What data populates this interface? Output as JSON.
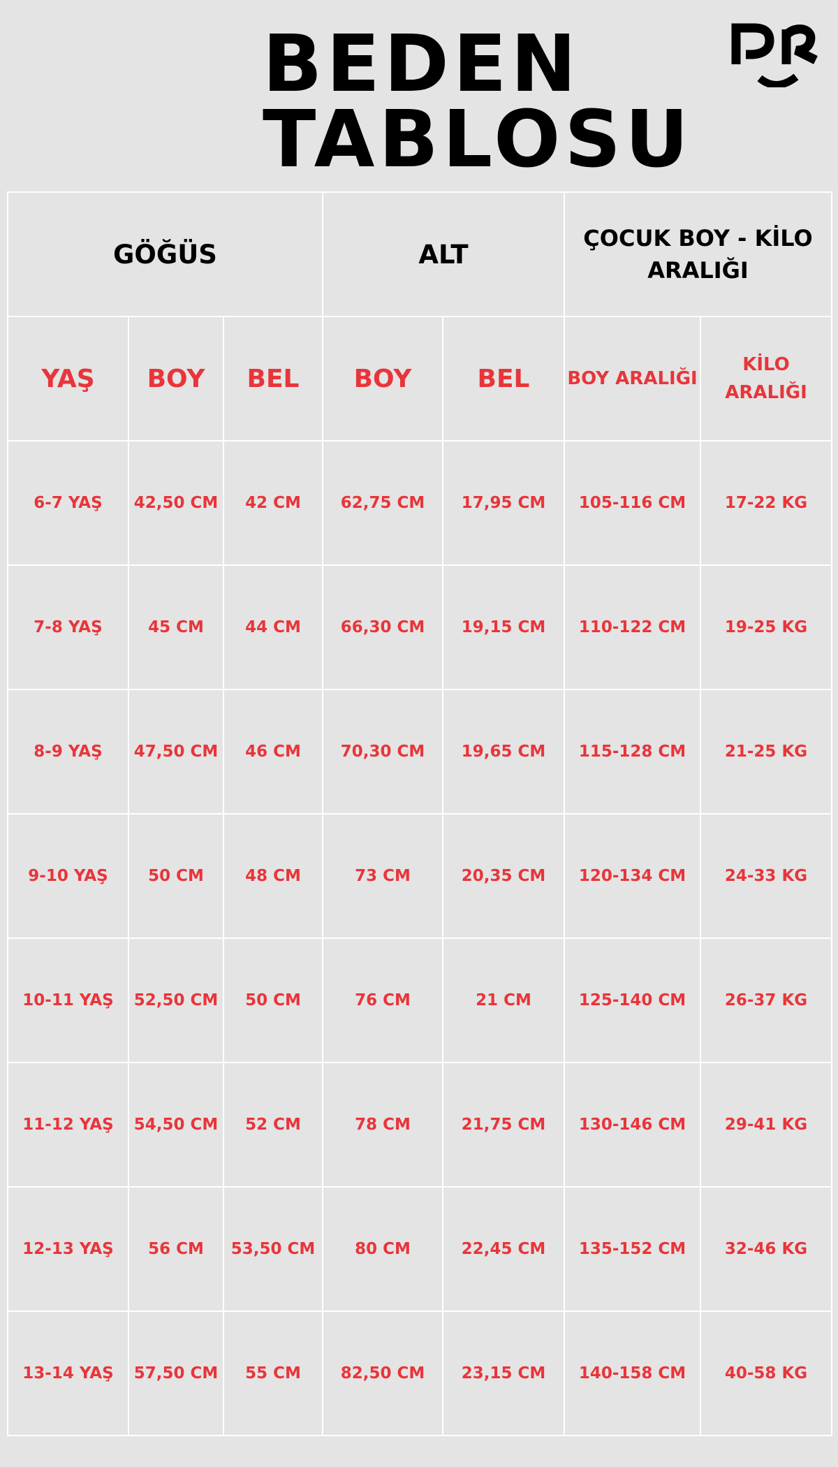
{
  "title": {
    "line1": "BEDEN",
    "line2": "TABLOSU"
  },
  "logo": {
    "text": "PR",
    "icon": "pr-smile-logo"
  },
  "colors": {
    "background": "#e4e4e4",
    "accent": "#e8353a",
    "grid": "#ffffff",
    "text": "#000000"
  },
  "groups": [
    "GÖĞÜS",
    "ALT",
    "ÇOCUK BOY - KİLO ARALIĞI"
  ],
  "columns": [
    "YAŞ",
    "BOY",
    "BEL",
    "BOY",
    "BEL",
    "BOY ARALIĞI",
    "KİLO ARALIĞI"
  ],
  "rows": [
    [
      "6-7 YAŞ",
      "42,50 CM",
      "42 CM",
      "62,75 CM",
      "17,95 CM",
      "105-116 CM",
      "17-22 KG"
    ],
    [
      "7-8 YAŞ",
      "45 CM",
      "44 CM",
      "66,30 CM",
      "19,15 CM",
      "110-122 CM",
      "19-25 KG"
    ],
    [
      "8-9 YAŞ",
      "47,50 CM",
      "46 CM",
      "70,30 CM",
      "19,65 CM",
      "115-128 CM",
      "21-25 KG"
    ],
    [
      "9-10 YAŞ",
      "50 CM",
      "48 CM",
      "73 CM",
      "20,35 CM",
      "120-134 CM",
      "24-33 KG"
    ],
    [
      "10-11 YAŞ",
      "52,50 CM",
      "50 CM",
      "76 CM",
      "21 CM",
      "125-140 CM",
      "26-37 KG"
    ],
    [
      "11-12 YAŞ",
      "54,50 CM",
      "52 CM",
      "78 CM",
      "21,75 CM",
      "130-146 CM",
      "29-41 KG"
    ],
    [
      "12-13 YAŞ",
      "56 CM",
      "53,50 CM",
      "80 CM",
      "22,45 CM",
      "135-152 CM",
      "32-46 KG"
    ],
    [
      "13-14 YAŞ",
      "57,50 CM",
      "55 CM",
      "82,50 CM",
      "23,15 CM",
      "140-158 CM",
      "40-58 KG"
    ]
  ]
}
